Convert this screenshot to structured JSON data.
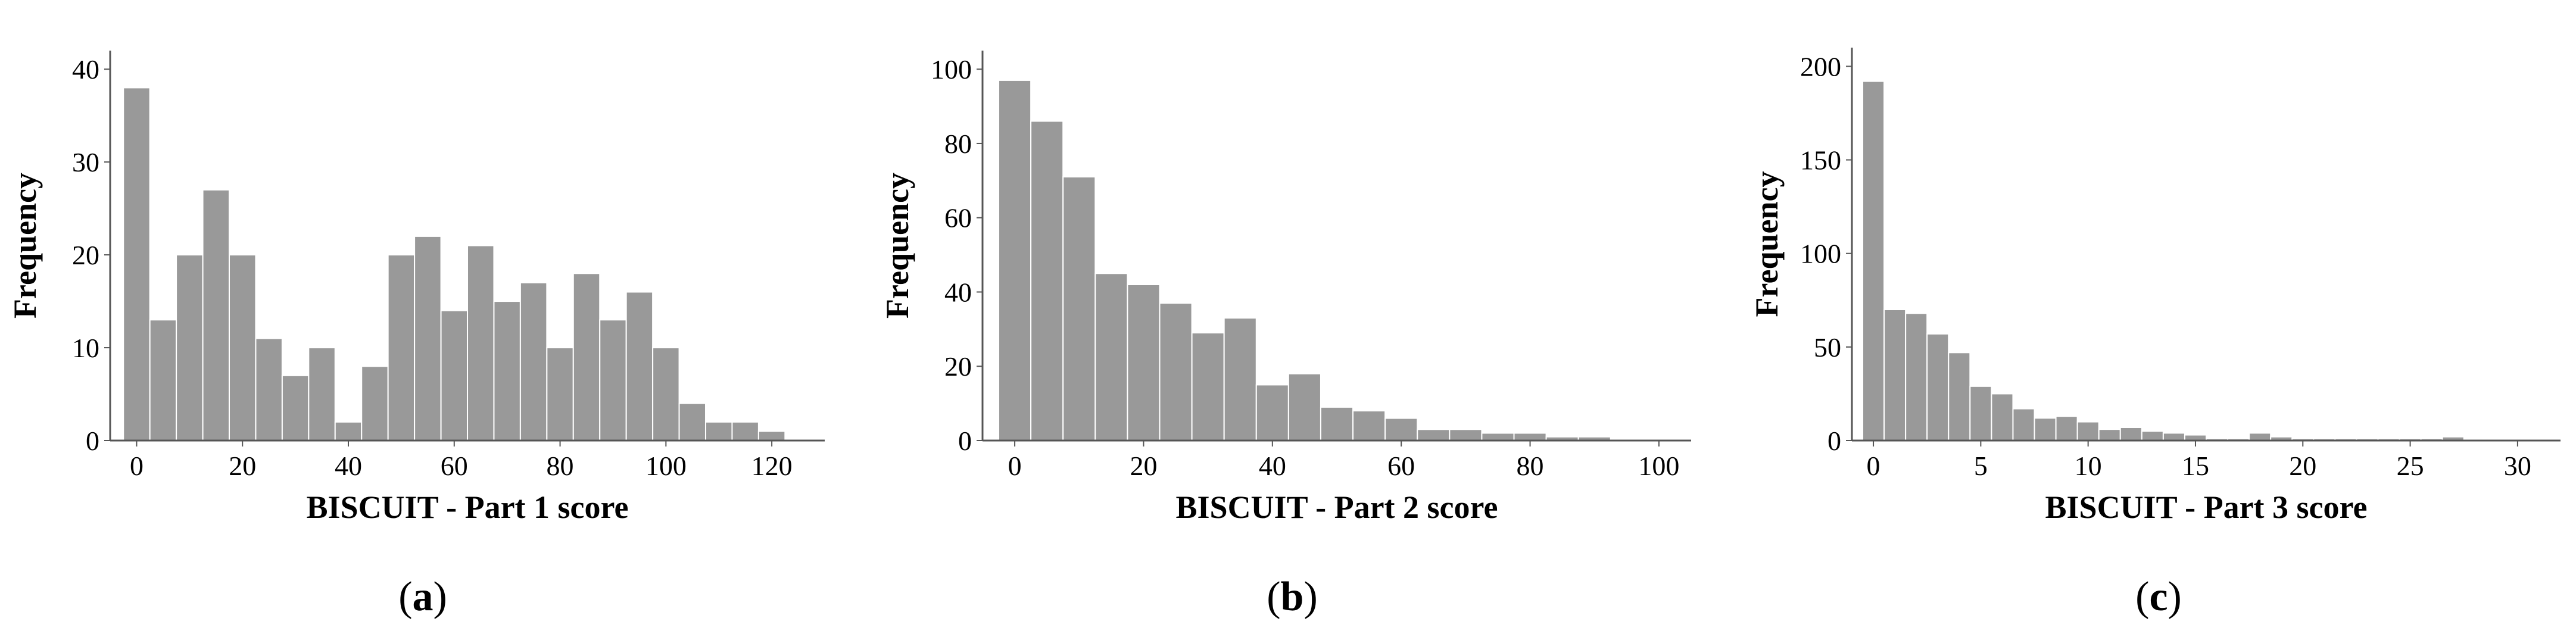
{
  "chart_data": [
    {
      "type": "bar",
      "panel_label": "a",
      "xlabel": "BISCUIT - Part 1 score",
      "ylabel": "Frequency",
      "xlim": [
        -5,
        130
      ],
      "ylim": [
        0,
        42
      ],
      "x_ticks": [
        0,
        20,
        40,
        60,
        80,
        100,
        120
      ],
      "y_ticks": [
        0,
        10,
        20,
        30,
        40
      ],
      "bin_width": 5,
      "bin_starts": [
        -2.5,
        2.5,
        7.5,
        12.5,
        17.5,
        22.5,
        27.5,
        32.5,
        37.5,
        42.5,
        47.5,
        52.5,
        57.5,
        62.5,
        67.5,
        72.5,
        77.5,
        82.5,
        87.5,
        92.5,
        97.5,
        102.5,
        107.5,
        112.5,
        117.5
      ],
      "values": [
        38,
        13,
        20,
        27,
        20,
        11,
        7,
        10,
        2,
        8,
        20,
        22,
        14,
        21,
        15,
        17,
        10,
        18,
        13,
        16,
        10,
        4,
        2,
        2,
        1
      ]
    },
    {
      "type": "bar",
      "panel_label": "b",
      "xlabel": "BISCUIT - Part 2 score",
      "ylabel": "Frequency",
      "xlim": [
        -5,
        105
      ],
      "ylim": [
        0,
        105
      ],
      "x_ticks": [
        0,
        20,
        40,
        60,
        80,
        100
      ],
      "y_ticks": [
        0,
        20,
        40,
        60,
        80,
        100
      ],
      "bin_width": 5,
      "bin_starts": [
        -2.5,
        2.5,
        7.5,
        12.5,
        17.5,
        22.5,
        27.5,
        32.5,
        37.5,
        42.5,
        47.5,
        52.5,
        57.5,
        62.5,
        67.5,
        72.5,
        77.5,
        82.5,
        87.5
      ],
      "values": [
        97,
        86,
        71,
        45,
        42,
        37,
        29,
        33,
        15,
        18,
        9,
        8,
        6,
        3,
        3,
        2,
        2,
        1,
        1
      ]
    },
    {
      "type": "bar",
      "panel_label": "c",
      "xlabel": "BISCUIT - Part 3 score",
      "ylabel": "Frequency",
      "xlim": [
        -1,
        32
      ],
      "ylim": [
        0,
        210
      ],
      "x_ticks": [
        0,
        5,
        10,
        15,
        20,
        25,
        30
      ],
      "y_ticks": [
        0,
        50,
        100,
        150,
        200
      ],
      "bin_width": 1,
      "bin_starts": [
        -0.5,
        0.5,
        1.5,
        2.5,
        3.5,
        4.5,
        5.5,
        6.5,
        7.5,
        8.5,
        9.5,
        10.5,
        11.5,
        12.5,
        13.5,
        14.5,
        15.5,
        16.5,
        17.5,
        18.5,
        19.5,
        20.5,
        21.5,
        22.5,
        23.5,
        24.5,
        25.5,
        26.5,
        27.5,
        28.5
      ],
      "values": [
        192,
        70,
        68,
        57,
        47,
        29,
        25,
        17,
        12,
        13,
        10,
        6,
        7,
        5,
        4,
        3,
        1,
        1,
        4,
        2,
        1,
        1,
        1,
        1,
        1,
        1,
        1,
        2,
        0,
        0
      ]
    }
  ]
}
